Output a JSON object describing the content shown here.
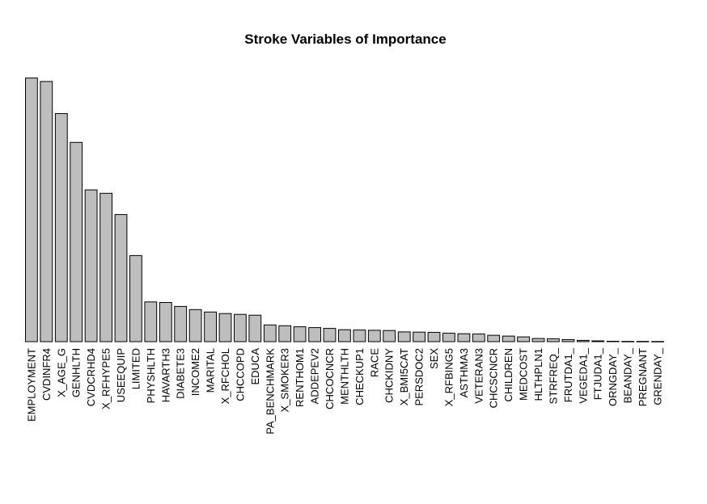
{
  "chart_data": {
    "type": "bar",
    "title": "Stroke Variables of Importance",
    "xlabel": "",
    "ylabel": "",
    "ylim": [
      0,
      100
    ],
    "axes_shown": false,
    "grid": false,
    "colors": {
      "bar_fill": "#bebebe",
      "bar_stroke": "#000000"
    },
    "categories": [
      "EMPLOYMENT",
      "CVDINFR4",
      "X_AGE_G",
      "GENHLTH",
      "CVDCRHD4",
      "X_RFHYPE5",
      "USEEQUIP",
      "LIMITED",
      "PHYSHLTH",
      "HAVARTH3",
      "DIABETE3",
      "INCOME2",
      "MARITAL",
      "X_RFCHOL",
      "CHCCOPD",
      "EDUCA",
      "PA_BENCHMARK",
      "X_SMOKER3",
      "RENTHOM1",
      "ADDEPEV2",
      "CHCOCNCR",
      "MENTHLTH",
      "CHECKUP1",
      "RACE",
      "CHCKIDNY",
      "X_BMI5CAT",
      "PERSDOC2",
      "SEX",
      "X_RFBING5",
      "ASTHMA3",
      "VETERAN3",
      "CHCSCNCR",
      "CHILDREN",
      "MEDCOST",
      "HLTHPLN1",
      "STRFREQ_",
      "FRUTDA1_",
      "VEGEDA1_",
      "FTJUDA1_",
      "ORNGDAY_",
      "BEANDAY_",
      "PREGNANT",
      "GRENDAY_"
    ],
    "values": [
      99.5,
      98.2,
      86.1,
      75.2,
      57.3,
      56.0,
      48.0,
      32.5,
      15.0,
      14.8,
      13.3,
      12.1,
      11.2,
      10.6,
      10.3,
      10.0,
      6.3,
      6.0,
      5.6,
      5.3,
      5.0,
      4.5,
      4.4,
      4.3,
      4.2,
      3.7,
      3.6,
      3.5,
      3.2,
      3.0,
      2.9,
      2.4,
      2.1,
      1.8,
      1.2,
      1.1,
      0.8,
      0.5,
      0.3,
      0.15,
      0.1,
      0.08,
      0.05
    ]
  }
}
